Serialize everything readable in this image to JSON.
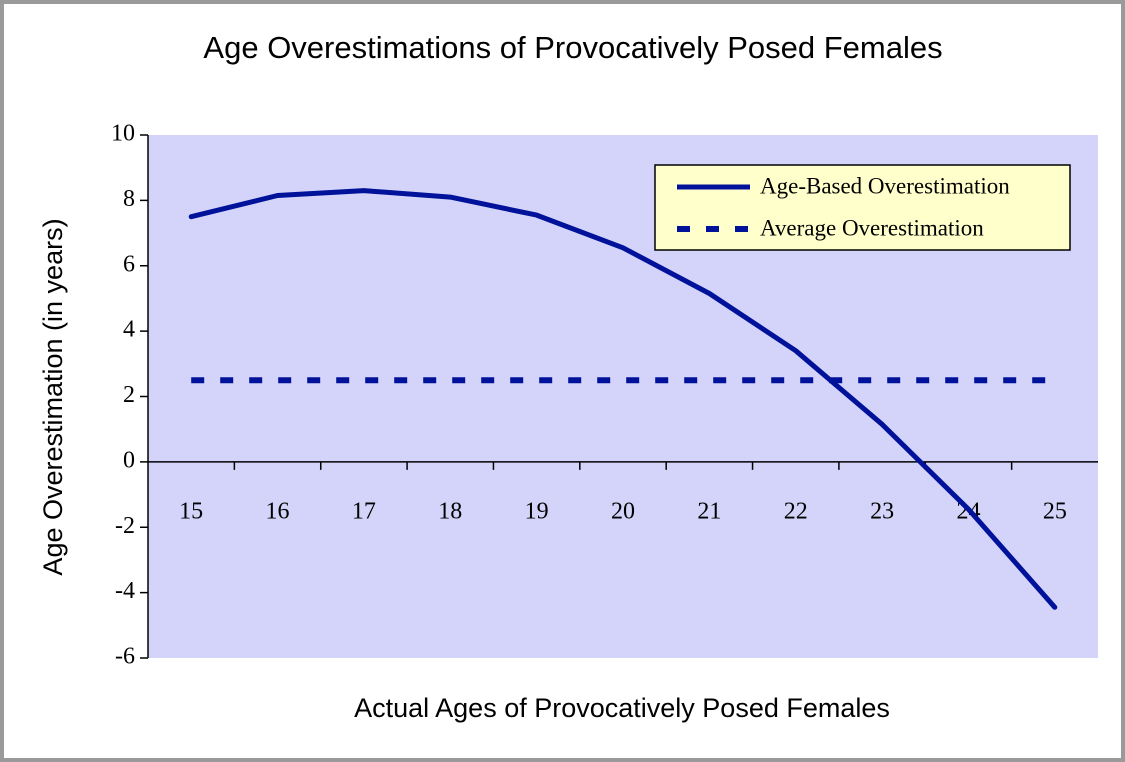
{
  "chart_data": {
    "type": "line",
    "title": "Age Overestimations of Provocatively Posed Females",
    "x_label": "Actual Ages of Provocatively Posed Females",
    "y_label": "Age Overestimation (in years)",
    "categories": [
      "15",
      "16",
      "17",
      "18",
      "19",
      "20",
      "21",
      "22",
      "23",
      "24",
      "25"
    ],
    "series": [
      {
        "name": "Age-Based Overestimation",
        "color": "#00129a",
        "style": "solid",
        "values": [
          7.5,
          8.15,
          8.3,
          8.1,
          7.55,
          6.55,
          5.15,
          3.4,
          1.15,
          -1.45,
          -4.45
        ]
      },
      {
        "name": "Average Overestimation",
        "color": "#00129a",
        "style": "dashed",
        "values": [
          2.5,
          2.5,
          2.5,
          2.5,
          2.5,
          2.5,
          2.5,
          2.5,
          2.5,
          2.5,
          2.5
        ]
      }
    ],
    "ylim": [
      -6,
      10
    ],
    "yticks": [
      -6,
      -4,
      -2,
      0,
      2,
      4,
      6,
      8,
      10
    ],
    "legend": "upper right",
    "plot_background": "#d4d4fb"
  }
}
